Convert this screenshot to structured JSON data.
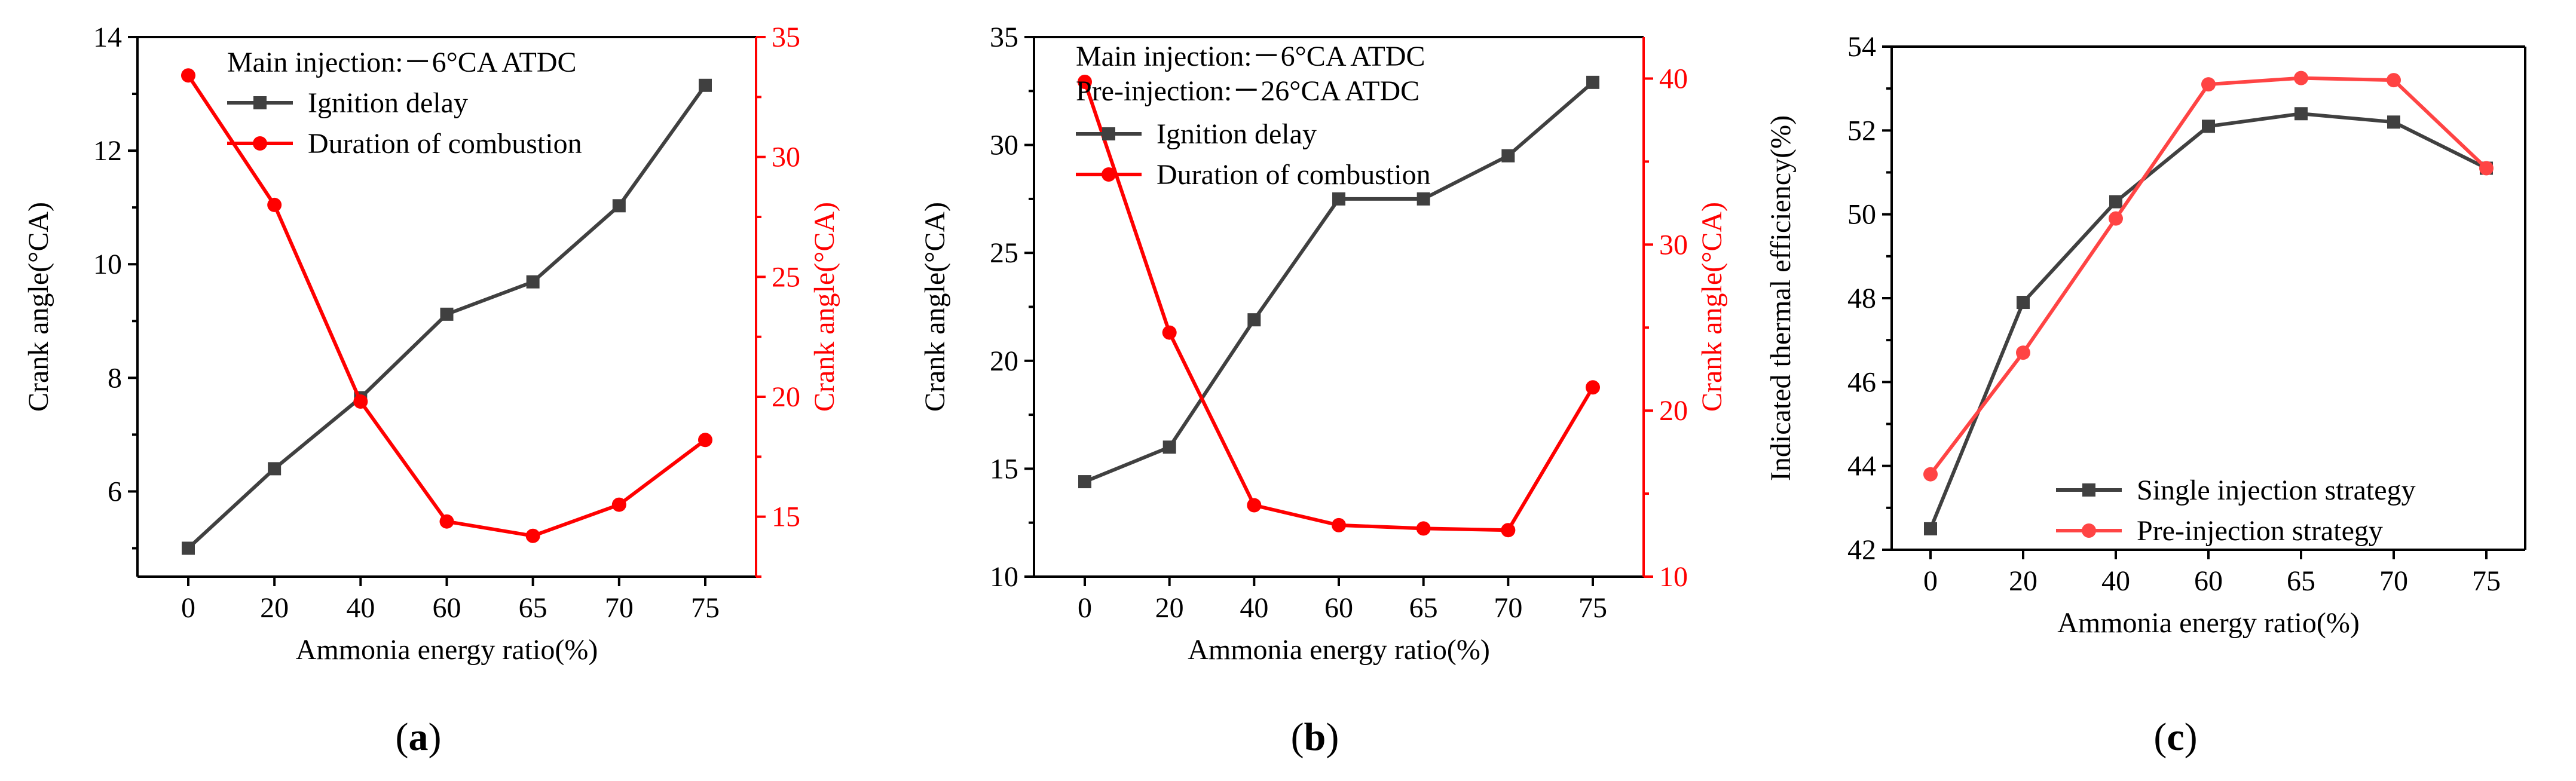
{
  "chart_data": [
    {
      "type": "line",
      "panel_label": "(a)",
      "xlabel": "Ammonia energy ratio(%)",
      "ylabel": "Crank angle(°CA)",
      "ylabel_right": "Crank angle(°CA)",
      "categories": [
        "0",
        "20",
        "40",
        "60",
        "65",
        "70",
        "75"
      ],
      "ylim": [
        4.5,
        14
      ],
      "yticks": [
        6,
        8,
        10,
        12,
        14
      ],
      "ylim_right": [
        12.5,
        35
      ],
      "yticks_right": [
        15,
        20,
        25,
        30,
        35
      ],
      "legend_title": [
        "Main injection:－6°CA ATDC"
      ],
      "series": [
        {
          "name": "Ignition delay",
          "axis": "left",
          "color": "#404040",
          "marker": "square",
          "values": [
            5.0,
            6.4,
            7.65,
            9.12,
            9.69,
            11.03,
            13.15
          ]
        },
        {
          "name": "Duration of combustion",
          "axis": "right",
          "color": "#ff0000",
          "marker": "circle",
          "values": [
            33.4,
            28.0,
            19.8,
            14.8,
            14.2,
            15.5,
            18.2
          ]
        }
      ]
    },
    {
      "type": "line",
      "panel_label": "(b)",
      "xlabel": "Ammonia energy ratio(%)",
      "ylabel": "Crank angle(°CA)",
      "ylabel_right": "Crank angle(°CA)",
      "categories": [
        "0",
        "20",
        "40",
        "60",
        "65",
        "70",
        "75"
      ],
      "ylim": [
        10,
        35
      ],
      "yticks": [
        10,
        15,
        20,
        25,
        30,
        35
      ],
      "ylim_right": [
        10,
        42.5
      ],
      "yticks_right": [
        10,
        20,
        30,
        40
      ],
      "legend_title": [
        "Main injection:－6°CA ATDC",
        "Pre-injection:－26°CA ATDC"
      ],
      "series": [
        {
          "name": "Ignition delay",
          "axis": "left",
          "color": "#404040",
          "marker": "square",
          "values": [
            14.4,
            16.0,
            21.9,
            27.5,
            27.5,
            29.5,
            32.9
          ]
        },
        {
          "name": "Duration of combustion",
          "axis": "right",
          "color": "#ff0000",
          "marker": "circle",
          "values": [
            39.8,
            24.7,
            14.3,
            13.1,
            12.9,
            12.8,
            21.4
          ]
        }
      ]
    },
    {
      "type": "line",
      "panel_label": "(c)",
      "xlabel": "Ammonia energy ratio(%)",
      "ylabel": "Indicated thermal efficiency(%)",
      "categories": [
        "0",
        "20",
        "40",
        "60",
        "65",
        "70",
        "75"
      ],
      "ylim": [
        42,
        54
      ],
      "yticks": [
        42,
        44,
        46,
        48,
        50,
        52,
        54
      ],
      "series": [
        {
          "name": "Single injection strategy",
          "axis": "left",
          "color": "#404040",
          "marker": "square",
          "values": [
            42.5,
            47.9,
            50.3,
            52.1,
            52.4,
            52.2,
            51.1
          ]
        },
        {
          "name": "Pre-injection strategy",
          "axis": "left",
          "color": "#ff4444",
          "marker": "circle",
          "values": [
            43.8,
            46.7,
            49.9,
            53.1,
            53.25,
            53.2,
            51.1
          ]
        }
      ]
    }
  ]
}
